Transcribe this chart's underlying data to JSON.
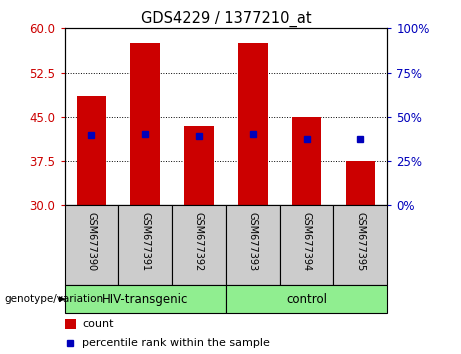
{
  "title": "GDS4229 / 1377210_at",
  "samples": [
    "GSM677390",
    "GSM677391",
    "GSM677392",
    "GSM677393",
    "GSM677394",
    "GSM677395"
  ],
  "group_labels": [
    "HIV-transgenic",
    "control"
  ],
  "group_sample_counts": [
    3,
    3
  ],
  "bar_color": "#CC0000",
  "marker_color": "#0000BB",
  "ymin": 30,
  "ymax": 60,
  "yticks_left": [
    30,
    37.5,
    45,
    52.5,
    60
  ],
  "yticks_right": [
    0,
    25,
    50,
    75,
    100
  ],
  "count_values": [
    48.5,
    57.5,
    43.5,
    57.5,
    45.0,
    37.5
  ],
  "percentile_values": [
    39.5,
    40.5,
    39.0,
    40.5,
    37.5,
    37.5
  ],
  "bar_width": 0.55,
  "left_tick_color": "#CC0000",
  "right_tick_color": "#0000BB",
  "sample_box_color": "#CCCCCC",
  "green_color": "#90EE90",
  "plot_bg": "#FFFFFF",
  "legend_items": [
    "count",
    "percentile rank within the sample"
  ],
  "genotype_label": "genotype/variation"
}
